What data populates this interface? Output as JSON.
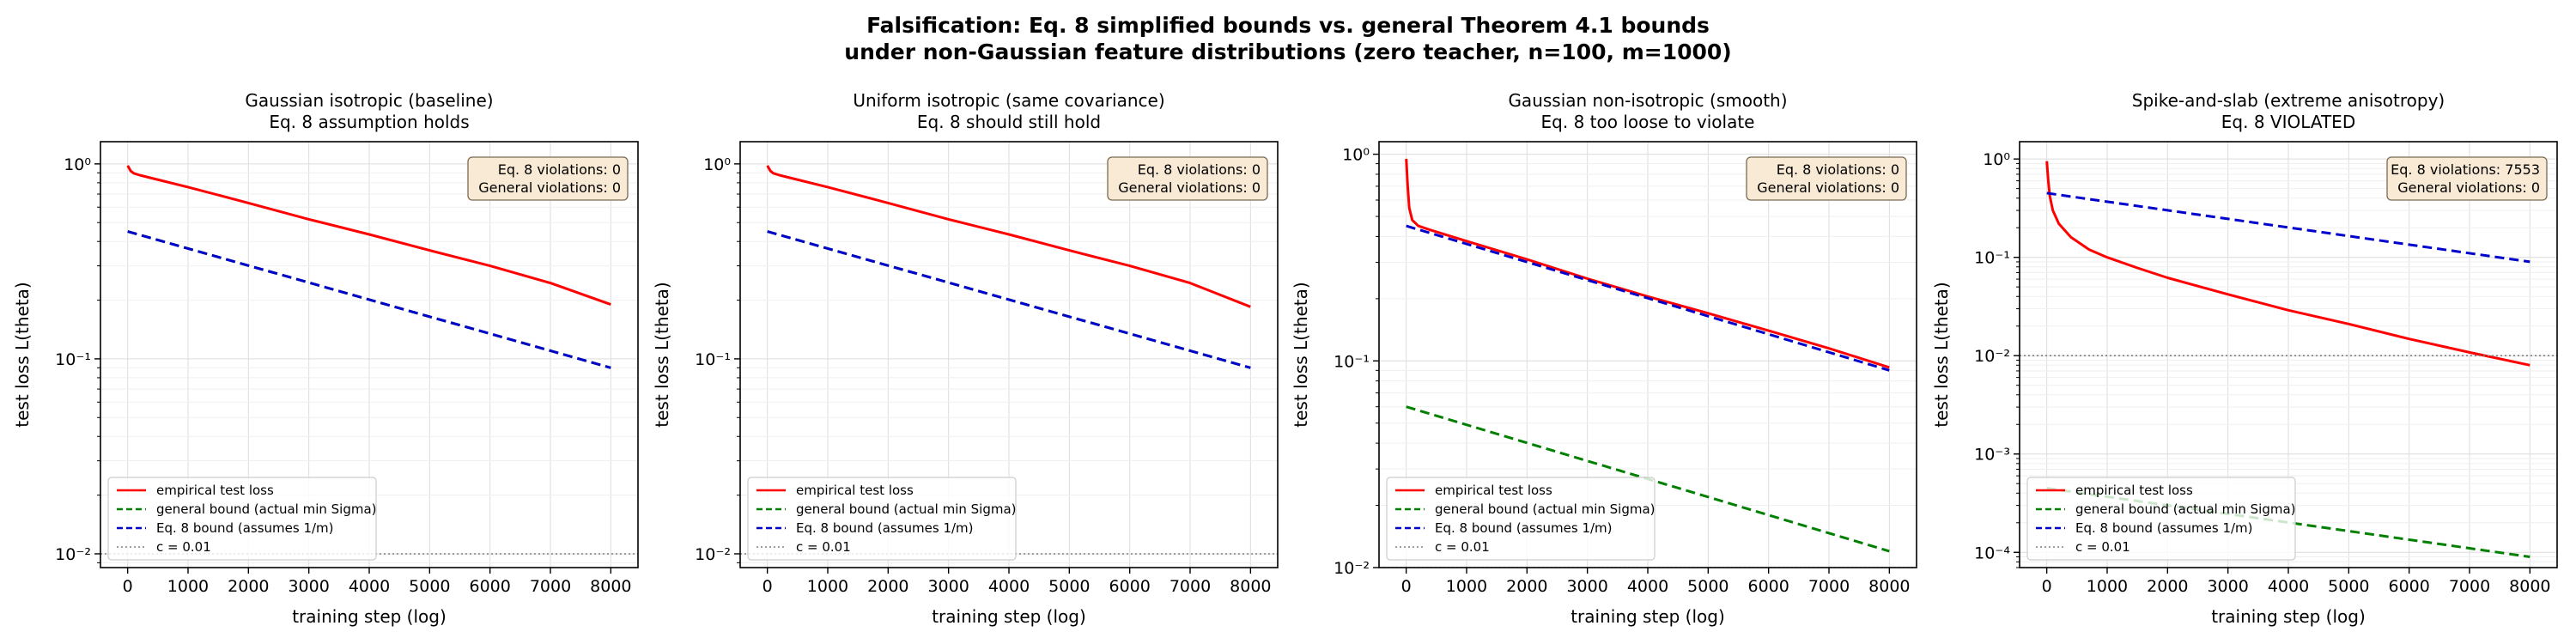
{
  "figure": {
    "title_line1": "Falsification: Eq. 8 simplified bounds vs. general Theorem 4.1 bounds",
    "title_line2": "under non-Gaussian feature distributions (zero teacher, n=100, m=1000)"
  },
  "colors": {
    "empirical": "#ff0000",
    "general": "#008000",
    "eq8": "#0000cc",
    "c_line": "#7f7f7f",
    "annotation_bg": "#f8ead5",
    "annotation_border": "#7a6a55"
  },
  "chart_data": [
    {
      "type": "line",
      "title_line1": "Gaussian isotropic (baseline)",
      "title_line2": "Eq. 8 assumption holds",
      "xlabel": "training step (log)",
      "ylabel": "test loss L(theta)",
      "xlim": [
        -450,
        8450
      ],
      "ylim": [
        0.0085,
        1.3
      ],
      "yscale": "log",
      "xticks": [
        0,
        1000,
        2000,
        3000,
        4000,
        5000,
        6000,
        7000,
        8000
      ],
      "yticks": [
        0.01,
        0.1,
        1
      ],
      "ytick_labels": [
        "10⁻²",
        "10⁻¹",
        "10⁰"
      ],
      "grid": true,
      "legend_position": "lower-left",
      "annotation_lines": [
        "Eq. 8 violations: 0",
        "General violations: 0"
      ],
      "series": [
        {
          "name": "empirical test loss",
          "style": "solid",
          "color_key": "empirical",
          "x": [
            0,
            25,
            50,
            100,
            200,
            400,
            1000,
            2000,
            3000,
            4000,
            5000,
            6000,
            7000,
            8000
          ],
          "y": [
            0.98,
            0.95,
            0.92,
            0.895,
            0.875,
            0.845,
            0.76,
            0.63,
            0.52,
            0.435,
            0.36,
            0.3,
            0.245,
            0.19
          ]
        },
        {
          "name": "general bound (actual min Sigma)",
          "style": "dashed",
          "color_key": "general",
          "x": [
            0,
            8000
          ],
          "y": [
            0.45,
            0.09
          ]
        },
        {
          "name": "Eq. 8 bound (assumes 1/m)",
          "style": "dashed",
          "color_key": "eq8",
          "x": [
            0,
            8000
          ],
          "y": [
            0.45,
            0.09
          ]
        },
        {
          "name": "c = 0.01",
          "style": "dotted",
          "color_key": "c_line",
          "x": [
            -450,
            8450
          ],
          "y": [
            0.01,
            0.01
          ]
        }
      ]
    },
    {
      "type": "line",
      "title_line1": "Uniform isotropic (same covariance)",
      "title_line2": "Eq. 8 should still hold",
      "xlabel": "training step (log)",
      "ylabel": "test loss L(theta)",
      "xlim": [
        -450,
        8450
      ],
      "ylim": [
        0.0085,
        1.3
      ],
      "yscale": "log",
      "xticks": [
        0,
        1000,
        2000,
        3000,
        4000,
        5000,
        6000,
        7000,
        8000
      ],
      "yticks": [
        0.01,
        0.1,
        1
      ],
      "ytick_labels": [
        "10⁻²",
        "10⁻¹",
        "10⁰"
      ],
      "grid": true,
      "legend_position": "lower-left",
      "annotation_lines": [
        "Eq. 8 violations: 0",
        "General violations: 0"
      ],
      "series": [
        {
          "name": "empirical test loss",
          "style": "solid",
          "color_key": "empirical",
          "x": [
            0,
            25,
            50,
            100,
            200,
            400,
            1000,
            2000,
            3000,
            4000,
            5000,
            6000,
            7000,
            8000
          ],
          "y": [
            0.98,
            0.95,
            0.92,
            0.895,
            0.875,
            0.845,
            0.76,
            0.63,
            0.52,
            0.435,
            0.36,
            0.3,
            0.245,
            0.185
          ]
        },
        {
          "name": "general bound (actual min Sigma)",
          "style": "dashed",
          "color_key": "general",
          "x": [
            0,
            8000
          ],
          "y": [
            0.45,
            0.09
          ]
        },
        {
          "name": "Eq. 8 bound (assumes 1/m)",
          "style": "dashed",
          "color_key": "eq8",
          "x": [
            0,
            8000
          ],
          "y": [
            0.45,
            0.09
          ]
        },
        {
          "name": "c = 0.01",
          "style": "dotted",
          "color_key": "c_line",
          "x": [
            -450,
            8450
          ],
          "y": [
            0.01,
            0.01
          ]
        }
      ]
    },
    {
      "type": "line",
      "title_line1": "Gaussian non-isotropic (smooth)",
      "title_line2": "Eq. 8 too loose to violate",
      "xlabel": "training step (log)",
      "ylabel": "test loss L(theta)",
      "xlim": [
        -450,
        8450
      ],
      "ylim": [
        0.01,
        1.15
      ],
      "yscale": "log",
      "xticks": [
        0,
        1000,
        2000,
        3000,
        4000,
        5000,
        6000,
        7000,
        8000
      ],
      "yticks": [
        0.01,
        0.1,
        1
      ],
      "ytick_labels": [
        "10⁻²",
        "10⁻¹",
        "10⁰"
      ],
      "grid": true,
      "legend_position": "lower-left",
      "annotation_lines": [
        "Eq. 8 violations: 0",
        "General violations: 0"
      ],
      "series": [
        {
          "name": "empirical test loss",
          "style": "solid",
          "color_key": "empirical",
          "x": [
            0,
            25,
            50,
            100,
            200,
            400,
            1000,
            2000,
            3000,
            4000,
            5000,
            6000,
            7000,
            8000
          ],
          "y": [
            0.95,
            0.7,
            0.55,
            0.48,
            0.45,
            0.43,
            0.38,
            0.31,
            0.25,
            0.205,
            0.17,
            0.14,
            0.115,
            0.093
          ]
        },
        {
          "name": "general bound (actual min Sigma)",
          "style": "dashed",
          "color_key": "general",
          "x": [
            0,
            8000
          ],
          "y": [
            0.06,
            0.012
          ]
        },
        {
          "name": "Eq. 8 bound (assumes 1/m)",
          "style": "dashed",
          "color_key": "eq8",
          "x": [
            0,
            8000
          ],
          "y": [
            0.45,
            0.09
          ]
        },
        {
          "name": "c = 0.01",
          "style": "dotted",
          "color_key": "c_line",
          "x": [
            -450,
            8450
          ],
          "y": [
            0.01,
            0.01
          ]
        }
      ]
    },
    {
      "type": "line",
      "title_line1": "Spike-and-slab (extreme anisotropy)",
      "title_line2": "Eq. 8 VIOLATED",
      "xlabel": "training step (log)",
      "ylabel": "test loss L(theta)",
      "xlim": [
        -450,
        8450
      ],
      "ylim": [
        7e-05,
        1.5
      ],
      "yscale": "log",
      "xticks": [
        0,
        1000,
        2000,
        3000,
        4000,
        5000,
        6000,
        7000,
        8000
      ],
      "yticks": [
        0.0001,
        0.001,
        0.01,
        0.1,
        1
      ],
      "ytick_labels": [
        "10⁻⁴",
        "10⁻³",
        "10⁻²",
        "10⁻¹",
        "10⁰"
      ],
      "grid": true,
      "legend_position": "lower-left",
      "annotation_lines": [
        "Eq. 8 violations: 7553",
        "General violations: 0"
      ],
      "series": [
        {
          "name": "empirical test loss",
          "style": "solid",
          "color_key": "empirical",
          "x": [
            0,
            25,
            50,
            100,
            200,
            400,
            700,
            1000,
            1500,
            2000,
            3000,
            4000,
            5000,
            6000,
            7000,
            8000
          ],
          "y": [
            0.95,
            0.6,
            0.42,
            0.3,
            0.22,
            0.16,
            0.12,
            0.1,
            0.078,
            0.062,
            0.042,
            0.029,
            0.021,
            0.0148,
            0.0108,
            0.008
          ]
        },
        {
          "name": "general bound (actual min Sigma)",
          "style": "dashed",
          "color_key": "general",
          "x": [
            0,
            8000
          ],
          "y": [
            0.00045,
            9e-05
          ]
        },
        {
          "name": "Eq. 8 bound (assumes 1/m)",
          "style": "dashed",
          "color_key": "eq8",
          "x": [
            0,
            8000
          ],
          "y": [
            0.45,
            0.09
          ]
        },
        {
          "name": "c = 0.01",
          "style": "dotted",
          "color_key": "c_line",
          "x": [
            -450,
            8450
          ],
          "y": [
            0.01,
            0.01
          ]
        }
      ]
    }
  ]
}
